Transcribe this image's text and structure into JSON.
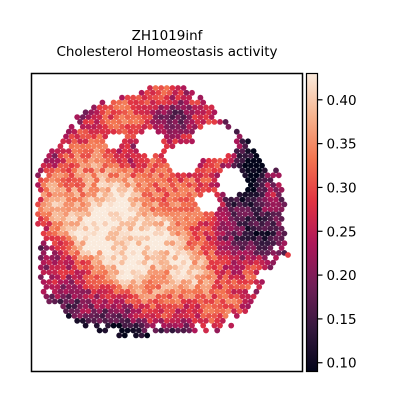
{
  "chart_data": {
    "type": "heatmap",
    "title": "ZH1019inf",
    "subtitle": "Cholesterol Homeostasis activity",
    "xlabel": "",
    "ylabel": "",
    "color_scale": {
      "name": "rocket",
      "min": 0.09,
      "max": 0.43,
      "ticks": [
        0.1,
        0.15,
        0.2,
        0.25,
        0.3,
        0.35,
        0.4
      ],
      "tick_labels": [
        "0.10",
        "0.15",
        "0.20",
        "0.25",
        "0.30",
        "0.35",
        "0.40"
      ],
      "stops": [
        "#03051a",
        "#35193e",
        "#701f57",
        "#ad1759",
        "#e13342",
        "#f37651",
        "#f6b48f",
        "#faebdd"
      ]
    },
    "notes_on_spatial_pattern": "",
    "axes_visible": false,
    "grid": false
  }
}
